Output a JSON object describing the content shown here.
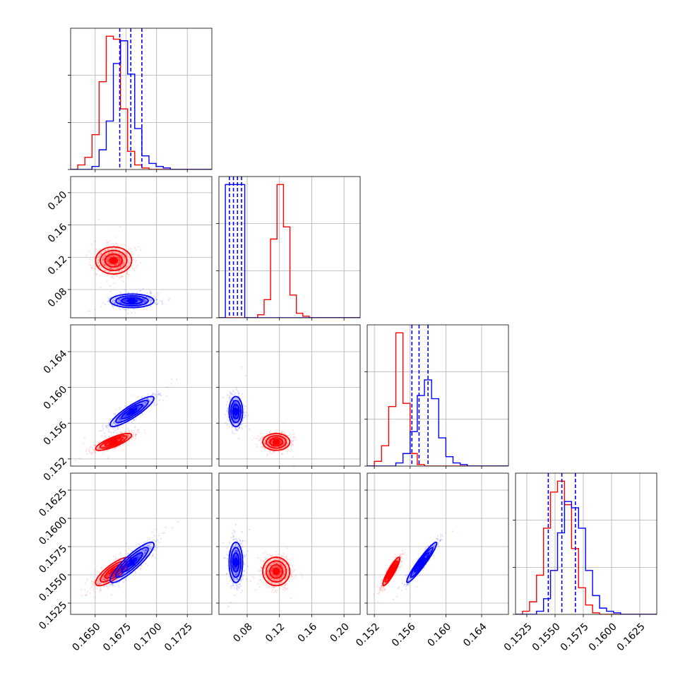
{
  "chart_data": {
    "type": "corner",
    "series": [
      {
        "name": "",
        "color": "#ff0000"
      },
      {
        "name": "",
        "color": "#0000ff"
      }
    ],
    "variables": [
      {
        "range": [
          0.163,
          0.1745
        ],
        "ticks": [
          0.165,
          0.1675,
          0.17,
          0.1725
        ],
        "tick_labels": [
          "0.1650",
          "0.1675",
          "0.1700",
          "0.1725"
        ],
        "bins": [
          0.163,
          0.16358,
          0.16416,
          0.16474,
          0.16532,
          0.1659,
          0.16648,
          0.16706,
          0.16764,
          0.16822,
          0.1688,
          0.16938,
          0.16996,
          0.17054,
          0.17112,
          0.1717,
          0.17228,
          0.17286,
          0.17344,
          0.17402,
          0.1745
        ],
        "hist": {
          "red": [
            0,
            3,
            8,
            23,
            58,
            88,
            86,
            40,
            12,
            3,
            1,
            0,
            0,
            0,
            0,
            0,
            0,
            0,
            0,
            0
          ],
          "blue": [
            0,
            0,
            0,
            2,
            13,
            32,
            70,
            85,
            63,
            27,
            9,
            4,
            2,
            1,
            0,
            0,
            0,
            0,
            0,
            0
          ]
        },
        "quantile_lines": [
          0.167,
          0.1679,
          0.1688
        ]
      },
      {
        "range": [
          0.045,
          0.22
        ],
        "ticks": [
          0.08,
          0.12,
          0.16,
          0.2
        ],
        "tick_labels": [
          "0.08",
          "0.12",
          "0.16",
          "0.20"
        ],
        "bins": [
          0.045,
          0.053,
          0.061,
          0.069,
          0.077,
          0.085,
          0.093,
          0.101,
          0.109,
          0.117,
          0.125,
          0.133,
          0.141,
          0.149,
          0.157,
          0.165,
          0.173,
          0.181,
          0.189,
          0.197,
          0.205,
          0.22
        ],
        "hist": {
          "red": [
            0,
            0,
            0,
            0,
            0,
            0,
            2,
            12,
            52,
            88,
            60,
            15,
            3,
            1,
            0,
            0,
            0,
            0,
            0,
            0,
            0
          ],
          "blue": [
            0,
            88,
            88,
            88,
            0,
            0,
            0,
            0,
            0,
            0,
            0,
            0,
            0,
            0,
            0,
            0,
            0,
            0,
            0,
            0,
            0
          ]
        },
        "quantile_lines": [
          0.058,
          0.063,
          0.068,
          0.073
        ]
      },
      {
        "range": [
          0.1512,
          0.167
        ],
        "ticks": [
          0.152,
          0.156,
          0.16,
          0.164
        ],
        "tick_labels": [
          "0.152",
          "0.156",
          "0.160",
          "0.164"
        ],
        "bins": [
          0.1512,
          0.152,
          0.1528,
          0.1536,
          0.1544,
          0.1552,
          0.156,
          0.1568,
          0.1576,
          0.1584,
          0.1592,
          0.16,
          0.1608,
          0.1616,
          0.1624,
          0.1632,
          0.164,
          0.1648,
          0.1656,
          0.1664,
          0.167
        ],
        "hist": {
          "red": [
            0,
            3,
            13,
            38,
            85,
            40,
            8,
            1,
            0,
            0,
            0,
            0,
            0,
            0,
            0,
            0,
            0,
            0,
            0,
            0
          ],
          "blue": [
            0,
            0,
            0,
            0,
            2,
            8,
            22,
            45,
            55,
            43,
            18,
            6,
            2,
            1,
            0,
            0,
            0,
            0,
            0,
            0
          ]
        },
        "quantile_lines": [
          0.1562,
          0.157,
          0.158
        ]
      },
      {
        "range": [
          0.1515,
          0.164
        ],
        "ticks": [
          0.1525,
          0.155,
          0.1575,
          0.16,
          0.1625
        ],
        "tick_labels": [
          "0.1525",
          "0.1550",
          "0.1575",
          "0.1600",
          "0.1625"
        ],
        "bins": [
          0.1515,
          0.15212,
          0.15274,
          0.15336,
          0.15398,
          0.1546,
          0.15522,
          0.15584,
          0.15646,
          0.15708,
          0.1577,
          0.15832,
          0.15894,
          0.15956,
          0.16018,
          0.1608,
          0.16142,
          0.16204,
          0.16266,
          0.16328,
          0.164
        ],
        "hist": {
          "red": [
            0,
            2,
            8,
            25,
            55,
            78,
            85,
            70,
            42,
            17,
            6,
            1,
            0,
            0,
            0,
            0,
            0,
            0,
            0,
            0
          ],
          "blue": [
            0,
            0,
            0,
            2,
            10,
            28,
            52,
            72,
            68,
            55,
            28,
            12,
            4,
            2,
            1,
            0,
            0,
            0,
            0,
            0
          ]
        },
        "quantile_lines": [
          0.1544,
          0.1556,
          0.1568
        ]
      }
    ],
    "modes": {
      "red": {
        "x0": [
          0.1665,
          0.0007
        ],
        "x1": [
          0.116,
          0.008
        ],
        "x2": [
          0.1539,
          0.00045
        ],
        "x3": [
          0.1553,
          0.0006
        ],
        "corr": {
          "0-2": 0.8,
          "0-3": 0.8,
          "2-3": 0.9,
          "0-1": 0.0,
          "1-2": 0.0,
          "1-3": 0.0
        }
      },
      "blue": {
        "x0": [
          0.168,
          0.00085
        ],
        "x1": [
          0.066,
          0.004
        ],
        "x2": [
          0.1573,
          0.0008
        ],
        "x3": [
          0.1561,
          0.00085
        ],
        "corr": {
          "0-2": 0.88,
          "0-3": 0.88,
          "2-3": 0.95,
          "0-1": 0.0,
          "1-2": 0.0,
          "1-3": 0.0
        }
      }
    },
    "grid": true
  }
}
